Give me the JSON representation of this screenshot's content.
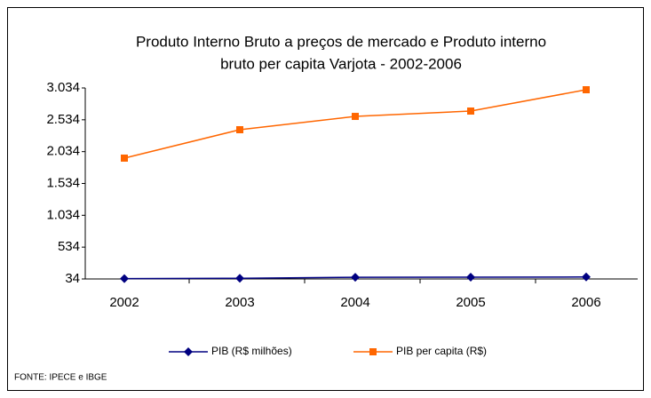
{
  "chart_data": {
    "type": "line",
    "title": [
      "Produto Interno Bruto a preços de mercado e   Produto interno",
      "bruto per capita Varjota - 2002-2006"
    ],
    "categories": [
      "2002",
      "2003",
      "2004",
      "2005",
      "2006"
    ],
    "series": [
      {
        "name": "PIB (R$ milhões)",
        "color": "#000080",
        "marker": "diamond",
        "values": [
          40,
          45,
          60,
          62,
          65
        ]
      },
      {
        "name": "PIB per capita (R$)",
        "color": "#ff6600",
        "marker": "square",
        "values": [
          1932,
          2378,
          2587,
          2671,
          3006
        ]
      }
    ],
    "ylim": [
      34,
      3034
    ],
    "yticks": [
      34,
      534,
      {
        "value": 1034,
        "label": "1.034"
      },
      {
        "value": 1534,
        "label": "1.534"
      },
      {
        "value": 2034,
        "label": "2.034"
      },
      {
        "value": 2534,
        "label": "2.534"
      },
      {
        "value": 3034,
        "label": "3.034"
      }
    ],
    "legend": "bottom",
    "source": "FONTE: IPECE e IBGE"
  }
}
